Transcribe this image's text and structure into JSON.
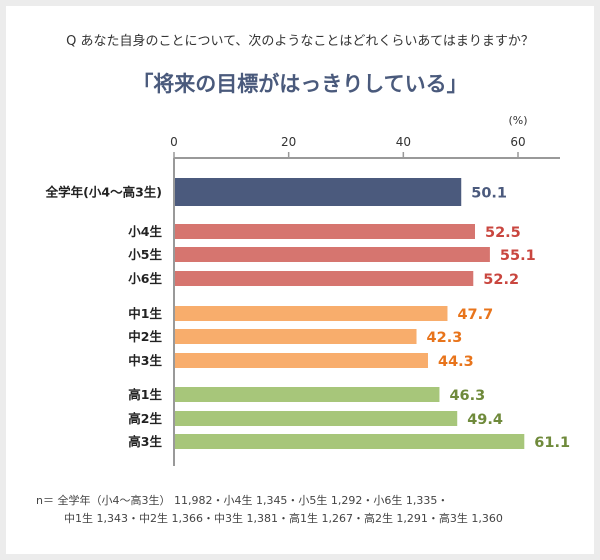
{
  "question": "Q あなた自身のことについて、次のようなことはどれくらいあてはまりますか？",
  "chart_data": {
    "type": "bar",
    "orientation": "horizontal",
    "title": "「将来の目標がはっきりしている」",
    "unit_label": "(%)",
    "xlim": [
      0,
      60
    ],
    "ticks": [
      "0",
      "20",
      "40",
      "60"
    ],
    "grid": false,
    "categories": [
      "全学年(小4〜高3生)",
      "小4生",
      "小5生",
      "小6生",
      "中1生",
      "中2生",
      "中3生",
      "高1生",
      "高2生",
      "高3生"
    ],
    "values": [
      50.1,
      52.5,
      55.1,
      52.2,
      47.7,
      42.3,
      44.3,
      46.3,
      49.4,
      61.1
    ],
    "groups": [
      "all",
      "elementary",
      "elementary",
      "elementary",
      "junior",
      "junior",
      "junior",
      "high",
      "high",
      "high"
    ],
    "colors": {
      "all": {
        "bar": "#4b5a7d",
        "label": "#4b5a7d"
      },
      "elementary": {
        "bar": "#d6756f",
        "label": "#c9463f"
      },
      "junior": {
        "bar": "#f8ad6c",
        "label": "#e8741b"
      },
      "high": {
        "bar": "#a7c67a",
        "label": "#6f8a3b"
      }
    }
  },
  "note": {
    "line1": "n＝ 全学年（小4〜高3生） 11,982・小4生 1,345・小5生 1,292・小6生 1,335・",
    "line2": "中1生 1,343・中2生 1,366・中3生 1,381・高1生 1,267・高2生 1,291・高3生 1,360"
  }
}
